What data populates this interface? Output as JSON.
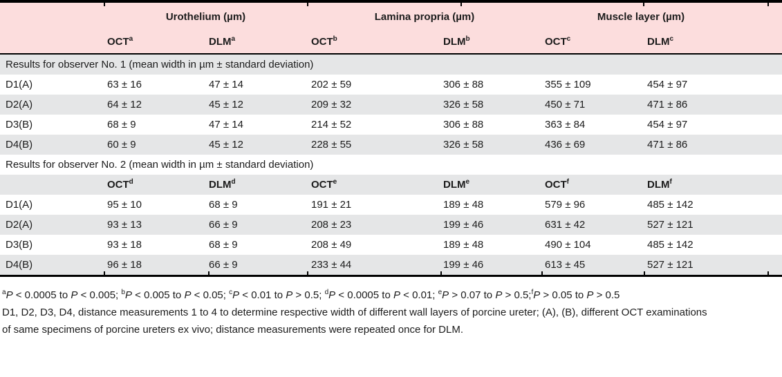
{
  "colors": {
    "header_pink": "#fcdddd",
    "stripe_gray": "#e5e6e7",
    "rule_black": "#000000"
  },
  "table": {
    "col_groups": [
      "Urothelium (µm)",
      "Lamina propria (µm)",
      "Muscle layer (µm)"
    ],
    "header1": [
      "OCT^a^",
      "DLM^a^",
      "OCT^b^",
      "DLM^b^",
      "OCT^c^",
      "DLM^c^"
    ],
    "section1": {
      "title": "Results for observer No. 1 (mean width in µm ± standard deviation)",
      "rows": [
        {
          "label": "D1(A)",
          "values": [
            "63 ± 16",
            "47 ± 14",
            "202 ± 59",
            "306 ± 88",
            "355 ± 109",
            "454 ± 97"
          ]
        },
        {
          "label": "D2(A)",
          "values": [
            "64 ± 12",
            "45 ± 12",
            "209 ± 32",
            "326 ± 58",
            "450 ± 71",
            "471 ± 86"
          ]
        },
        {
          "label": "D3(B)",
          "values": [
            "68 ± 9",
            "47 ± 14",
            "214 ± 52",
            "306 ± 88",
            "363 ± 84",
            "454 ± 97"
          ]
        },
        {
          "label": "D4(B)",
          "values": [
            "60 ± 9",
            "45 ± 12",
            "228 ± 55",
            "326 ± 58",
            "436 ± 69",
            "471 ± 86"
          ]
        }
      ]
    },
    "section2": {
      "title": "Results for observer No. 2 (mean width in µm ± standard deviation)",
      "header": [
        "OCT^d^",
        "DLM^d^",
        "OCT^e^",
        "DLM^e^",
        "OCT^f^",
        "DLM^f^"
      ],
      "rows": [
        {
          "label": "D1(A)",
          "values": [
            "95 ± 10",
            "68 ± 9",
            "191 ± 21",
            "189 ± 48",
            "579 ± 96",
            "485 ± 142"
          ]
        },
        {
          "label": "D2(A)",
          "values": [
            "93 ± 13",
            "66 ± 9",
            "208 ± 23",
            "199 ± 46",
            "631 ± 42",
            "527 ± 121"
          ]
        },
        {
          "label": "D3(B)",
          "values": [
            "93 ± 18",
            "68 ± 9",
            "208 ± 49",
            "189 ± 48",
            "490 ± 104",
            "485 ± 142"
          ]
        },
        {
          "label": "D4(B)",
          "values": [
            "96 ± 18",
            "66 ± 9",
            "233 ± 44",
            "199 ± 46",
            "613 ± 45",
            "527 ± 121"
          ]
        }
      ]
    }
  },
  "footnotes": [
    "^a^*P* < 0.0005 to *P* < 0.005; ^b^*P* < 0.005 to *P* < 0.05; ^c^*P* < 0.01 to *P* > 0.5; ^d^*P* < 0.0005 to *P* < 0.01; ^e^*P* > 0.07 to *P* > 0.5;^f^*P* > 0.05 to *P* > 0.5",
    "D1, D2, D3, D4, distance measurements 1 to 4 to determine respective width of different wall layers of porcine ureter; (A), (B), different OCT examinations",
    "of same specimens of porcine ureters ex vivo; distance measurements were repeated once for DLM."
  ]
}
